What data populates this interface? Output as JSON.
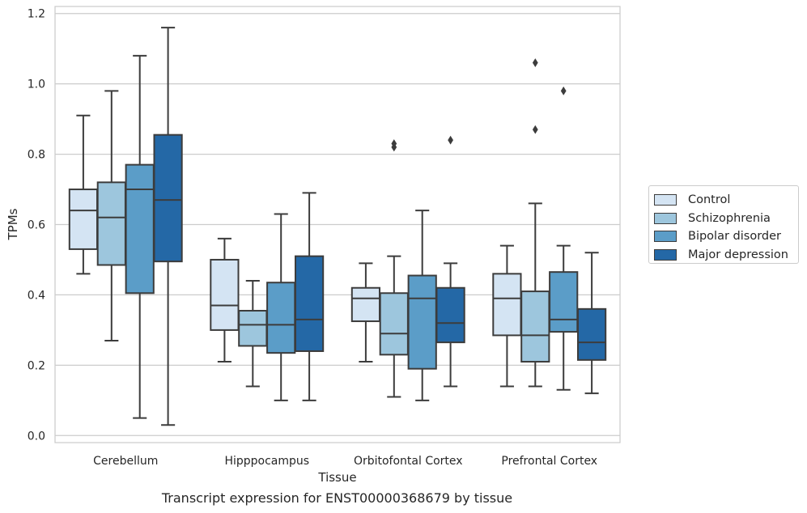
{
  "caption": "Transcript expression for ENST00000368679 by tissue",
  "chart_data": {
    "type": "box",
    "title": "",
    "xlabel": "Tissue",
    "ylabel": "TPMs",
    "ylim": [
      -0.02,
      1.22
    ],
    "yticks": [
      0.0,
      0.2,
      0.4,
      0.6,
      0.8,
      1.0,
      1.2
    ],
    "ytick_labels": [
      "0.0",
      "0.2",
      "0.4",
      "0.6",
      "0.8",
      "1.0",
      "1.2"
    ],
    "grid": "horizontal",
    "legend_position": "right",
    "categories": [
      "Cerebellum",
      "Hipppocampus",
      "Orbitofontal Cortex",
      "Prefrontal Cortex"
    ],
    "series": [
      {
        "name": "Control",
        "color": "#d4e4f3",
        "boxes": [
          {
            "whislo": 0.46,
            "q1": 0.53,
            "med": 0.64,
            "q3": 0.7,
            "whishi": 0.91,
            "fliers": []
          },
          {
            "whislo": 0.21,
            "q1": 0.3,
            "med": 0.37,
            "q3": 0.5,
            "whishi": 0.56,
            "fliers": []
          },
          {
            "whislo": 0.21,
            "q1": 0.325,
            "med": 0.39,
            "q3": 0.42,
            "whishi": 0.49,
            "fliers": []
          },
          {
            "whislo": 0.14,
            "q1": 0.285,
            "med": 0.39,
            "q3": 0.46,
            "whishi": 0.54,
            "fliers": []
          }
        ]
      },
      {
        "name": "Schizophrenia",
        "color": "#9dc6dd",
        "boxes": [
          {
            "whislo": 0.27,
            "q1": 0.485,
            "med": 0.62,
            "q3": 0.72,
            "whishi": 0.98,
            "fliers": []
          },
          {
            "whislo": 0.14,
            "q1": 0.255,
            "med": 0.315,
            "q3": 0.355,
            "whishi": 0.44,
            "fliers": []
          },
          {
            "whislo": 0.11,
            "q1": 0.23,
            "med": 0.29,
            "q3": 0.405,
            "whishi": 0.51,
            "fliers": [
              0.82,
              0.83
            ]
          },
          {
            "whislo": 0.14,
            "q1": 0.21,
            "med": 0.285,
            "q3": 0.41,
            "whishi": 0.66,
            "fliers": [
              0.87,
              1.06
            ]
          }
        ]
      },
      {
        "name": "Bipolar disorder",
        "color": "#5b9dc8",
        "boxes": [
          {
            "whislo": 0.05,
            "q1": 0.405,
            "med": 0.7,
            "q3": 0.77,
            "whishi": 1.08,
            "fliers": []
          },
          {
            "whislo": 0.1,
            "q1": 0.235,
            "med": 0.315,
            "q3": 0.435,
            "whishi": 0.63,
            "fliers": []
          },
          {
            "whislo": 0.1,
            "q1": 0.19,
            "med": 0.39,
            "q3": 0.455,
            "whishi": 0.64,
            "fliers": []
          },
          {
            "whislo": 0.13,
            "q1": 0.295,
            "med": 0.33,
            "q3": 0.465,
            "whishi": 0.54,
            "fliers": [
              0.98
            ]
          }
        ]
      },
      {
        "name": "Major depression",
        "color": "#2468a6",
        "boxes": [
          {
            "whislo": 0.03,
            "q1": 0.495,
            "med": 0.67,
            "q3": 0.855,
            "whishi": 1.16,
            "fliers": []
          },
          {
            "whislo": 0.1,
            "q1": 0.24,
            "med": 0.33,
            "q3": 0.51,
            "whishi": 0.69,
            "fliers": []
          },
          {
            "whislo": 0.14,
            "q1": 0.265,
            "med": 0.32,
            "q3": 0.42,
            "whishi": 0.49,
            "fliers": [
              0.84
            ]
          },
          {
            "whislo": 0.12,
            "q1": 0.215,
            "med": 0.265,
            "q3": 0.36,
            "whishi": 0.52,
            "fliers": []
          }
        ]
      }
    ]
  }
}
